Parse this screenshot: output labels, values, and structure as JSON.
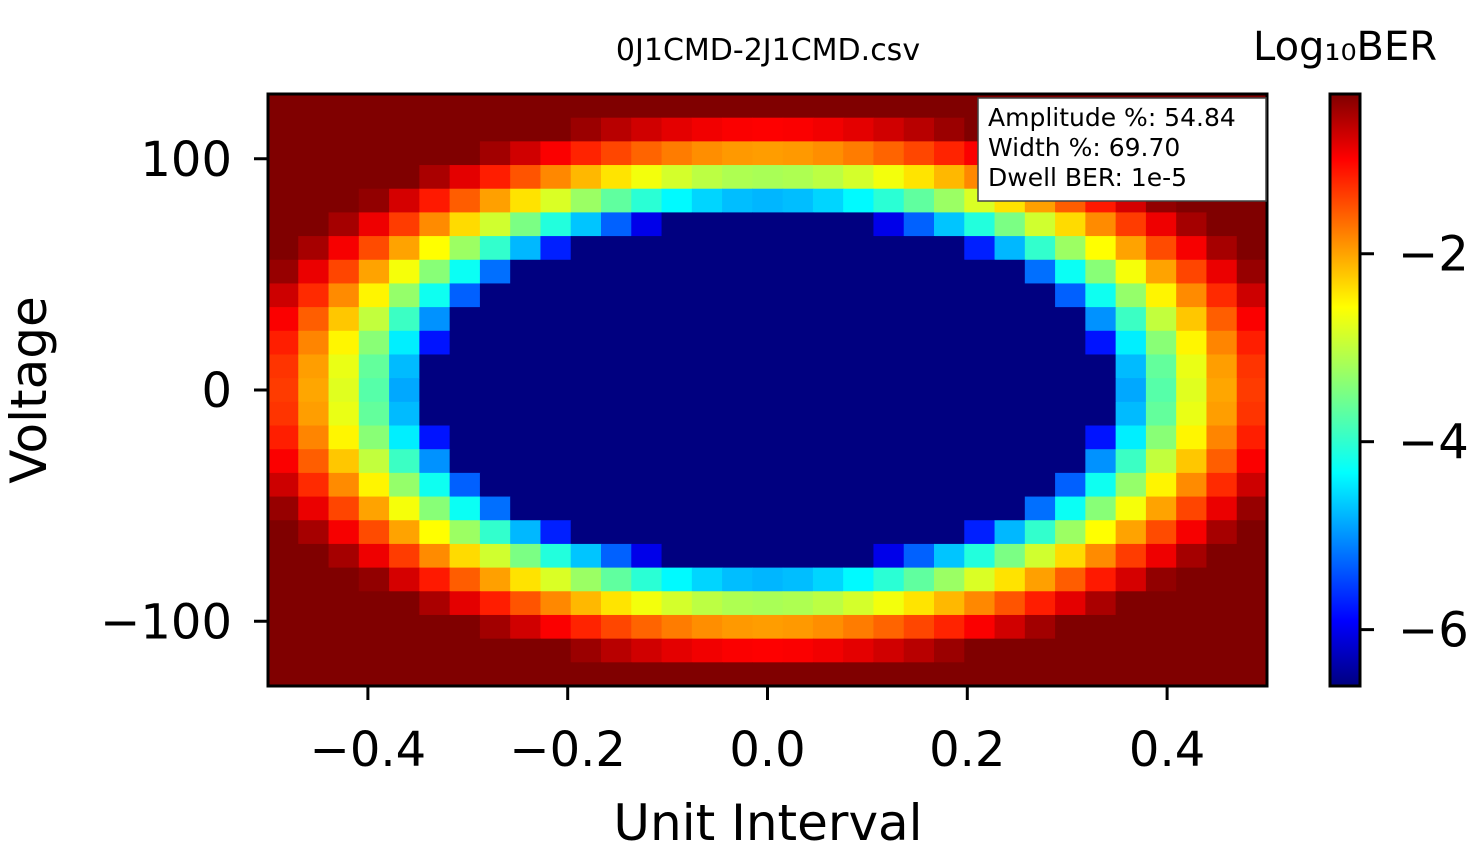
{
  "chart_data": {
    "type": "heatmap",
    "title": "0J1CMD-2J1CMD.csv",
    "xlabel": "Unit Interval",
    "ylabel": "Voltage",
    "xlim": [
      -0.5,
      0.5
    ],
    "ylim": [
      -128,
      128
    ],
    "x_ticks": [
      -0.4,
      -0.2,
      0.0,
      0.2,
      0.4
    ],
    "x_tick_labels": [
      "−0.4",
      "−0.2",
      "0.0",
      "0.2",
      "0.4"
    ],
    "y_ticks": [
      100,
      0,
      -100
    ],
    "y_tick_labels": [
      "100",
      "0",
      "−100"
    ],
    "grid": false,
    "legend": "none",
    "colormap": "jet",
    "colorbar": {
      "label": "Log₁₀BER",
      "range": [
        -6.6,
        -0.3
      ],
      "ticks": [
        -2,
        -4,
        -6
      ],
      "tick_labels": [
        "−2",
        "−4",
        "−6"
      ]
    },
    "grid_size": {
      "cols": 33,
      "rows": 25
    },
    "eye": {
      "center_ui": 0.0,
      "center_voltage": 0,
      "half_width_ui": 0.375,
      "half_height_voltage": 84,
      "floor_log10_ber": -6.6,
      "ceiling_log10_ber": -0.3
    },
    "annotation": [
      "Amplitude %: 54.84",
      "Width %: 69.70",
      "Dwell BER: 1e-5"
    ],
    "amplitude_percent": 54.84,
    "width_percent": 69.7,
    "dwell_ber": "1e-5"
  }
}
